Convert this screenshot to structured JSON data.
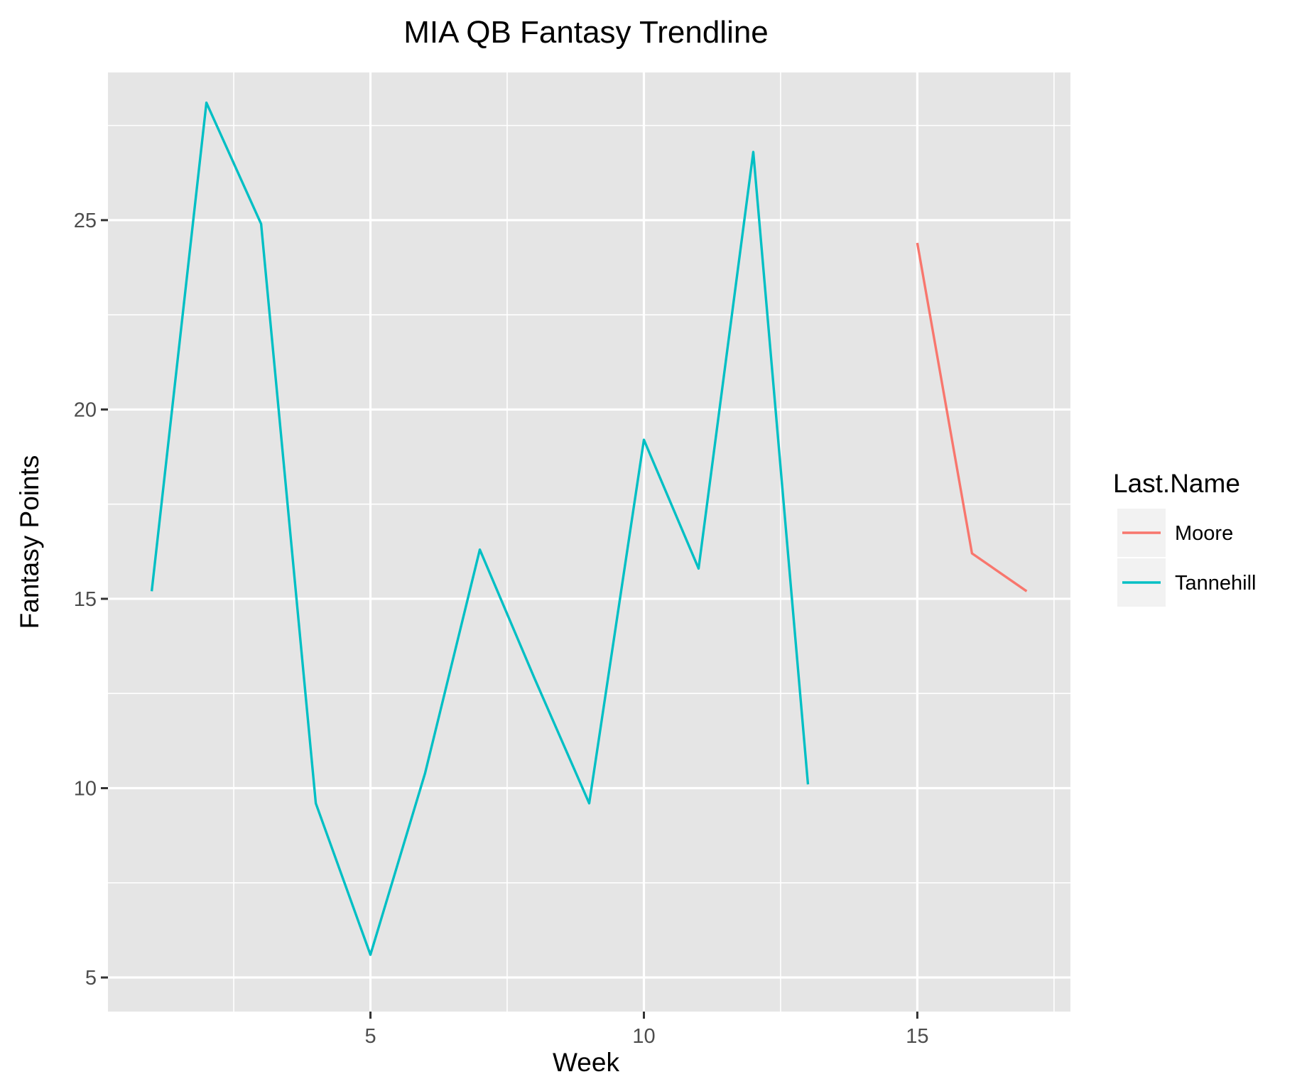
{
  "chart_data": {
    "type": "line",
    "title": "MIA QB Fantasy Trendline",
    "xlabel": "Week",
    "ylabel": "Fantasy Points",
    "xlim": [
      0.2,
      17.8
    ],
    "ylim": [
      4.1,
      28.9
    ],
    "xticks": [
      5,
      10,
      15
    ],
    "yticks": [
      5,
      10,
      15,
      20,
      25
    ],
    "grid": true,
    "legend": {
      "title": "Last.Name",
      "position": "right"
    },
    "series": [
      {
        "name": "Moore",
        "color": "#f8766d",
        "x": [
          15,
          16,
          17
        ],
        "y": [
          24.4,
          16.2,
          15.2
        ]
      },
      {
        "name": "Tannehill",
        "color": "#00bfc4",
        "x": [
          1,
          2,
          3,
          4,
          5,
          6,
          7,
          8,
          9,
          10,
          11,
          12,
          13
        ],
        "y": [
          15.2,
          28.1,
          24.9,
          9.6,
          5.6,
          10.4,
          16.3,
          12.9,
          9.6,
          19.2,
          15.8,
          26.8,
          10.1
        ]
      }
    ]
  }
}
